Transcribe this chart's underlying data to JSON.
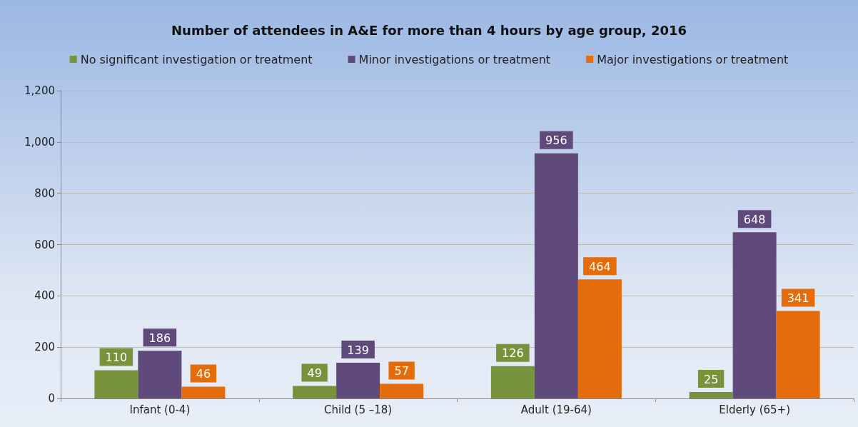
{
  "chart_data": {
    "type": "bar",
    "title": "Number of attendees in A&E for more than 4 hours by age group, 2016",
    "categories": [
      "Infant (0-4)",
      "Child (5 –18)",
      "Adult (19-64)",
      "Elderly (65+)"
    ],
    "series": [
      {
        "name": "No significant investigation or treatment",
        "color": "#77933c",
        "values": [
          110,
          49,
          126,
          25
        ]
      },
      {
        "name": "Minor investigations or treatment",
        "color": "#604a7b",
        "values": [
          186,
          139,
          956,
          648
        ]
      },
      {
        "name": "Major investigations or treatment",
        "color": "#e46c0a",
        "values": [
          46,
          57,
          464,
          341
        ]
      }
    ],
    "ylim": [
      0,
      1200
    ],
    "yticks": [
      0,
      200,
      400,
      600,
      800,
      {
        "value": 1000,
        "label": "1,000"
      },
      {
        "value": 1200,
        "label": "1,200"
      }
    ],
    "grid": "y",
    "legend": "top",
    "data_labels": true
  }
}
